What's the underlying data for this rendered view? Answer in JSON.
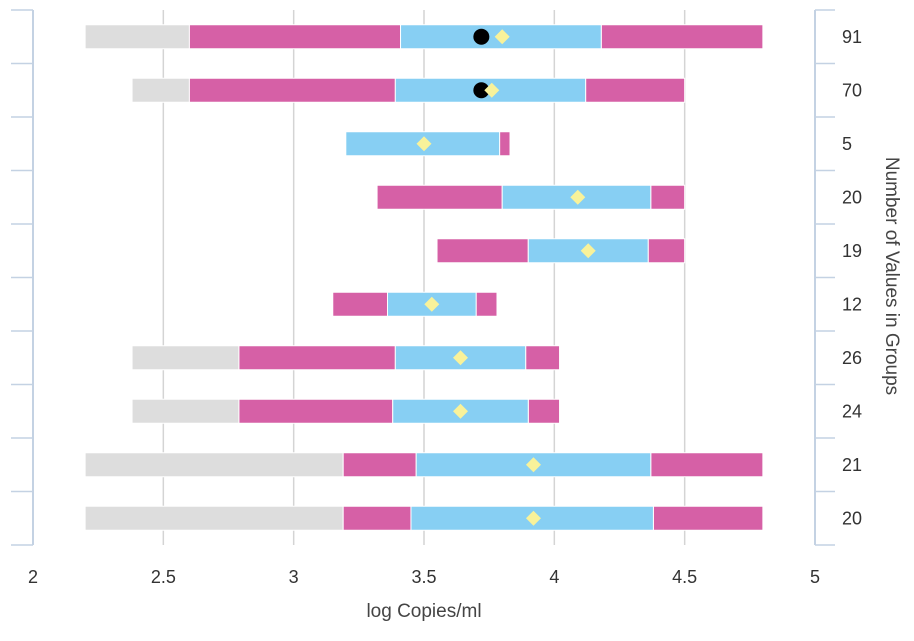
{
  "chart_data": {
    "type": "bar",
    "orientation": "horizontal",
    "xlabel": "log Copies/ml",
    "y2label": "Number of Values in Groups",
    "xlim": [
      2,
      5
    ],
    "xticks": [
      "2",
      "2.5",
      "3",
      "3.5",
      "4",
      "4.5",
      "5"
    ],
    "grid": true,
    "rows": [
      {
        "count": "91",
        "gray": [
          2.2,
          2.6
        ],
        "pink_low": [
          2.6,
          3.41
        ],
        "blue": [
          3.41,
          4.18
        ],
        "pink_high": [
          4.18,
          4.8
        ],
        "diamond": 3.8,
        "dot": 3.72
      },
      {
        "count": "70",
        "gray": [
          2.38,
          2.6
        ],
        "pink_low": [
          2.6,
          3.39
        ],
        "blue": [
          3.39,
          4.12
        ],
        "pink_high": [
          4.12,
          4.5
        ],
        "diamond": 3.76,
        "dot": 3.72
      },
      {
        "count": "5",
        "blue": [
          3.2,
          3.79
        ],
        "pink_high": [
          3.79,
          3.83
        ],
        "diamond": 3.5
      },
      {
        "count": "20",
        "pink_low": [
          3.32,
          3.8
        ],
        "blue": [
          3.8,
          4.37
        ],
        "pink_high": [
          4.37,
          4.5
        ],
        "diamond": 4.09
      },
      {
        "count": "19",
        "pink_low": [
          3.55,
          3.9
        ],
        "blue": [
          3.9,
          4.36
        ],
        "pink_high": [
          4.36,
          4.5
        ],
        "diamond": 4.13
      },
      {
        "count": "12",
        "pink_low": [
          3.15,
          3.36
        ],
        "blue": [
          3.36,
          3.7
        ],
        "pink_high": [
          3.7,
          3.78
        ],
        "diamond": 3.53
      },
      {
        "count": "26",
        "gray": [
          2.38,
          2.79
        ],
        "pink_low": [
          2.79,
          3.39
        ],
        "blue": [
          3.39,
          3.89
        ],
        "pink_high": [
          3.89,
          4.02
        ],
        "diamond": 3.64
      },
      {
        "count": "24",
        "gray": [
          2.38,
          2.79
        ],
        "pink_low": [
          2.79,
          3.38
        ],
        "blue": [
          3.38,
          3.9
        ],
        "pink_high": [
          3.9,
          4.02
        ],
        "diamond": 3.64
      },
      {
        "count": "21",
        "gray": [
          2.2,
          3.19
        ],
        "pink_low": [
          3.19,
          3.47
        ],
        "blue": [
          3.47,
          4.37
        ],
        "pink_high": [
          4.37,
          4.8
        ],
        "diamond": 3.92
      },
      {
        "count": "20",
        "gray": [
          2.2,
          3.19
        ],
        "pink_low": [
          3.19,
          3.45
        ],
        "blue": [
          3.45,
          4.38
        ],
        "pink_high": [
          4.38,
          4.8
        ],
        "diamond": 3.92
      }
    ],
    "colors": {
      "gray": "#dddddd",
      "pink": "#d660a6",
      "blue": "#87cff3",
      "diamond": "#f8f29a",
      "dot": "#000000",
      "grid": "#d4d4d4",
      "axis": "#c4d2e3"
    }
  }
}
